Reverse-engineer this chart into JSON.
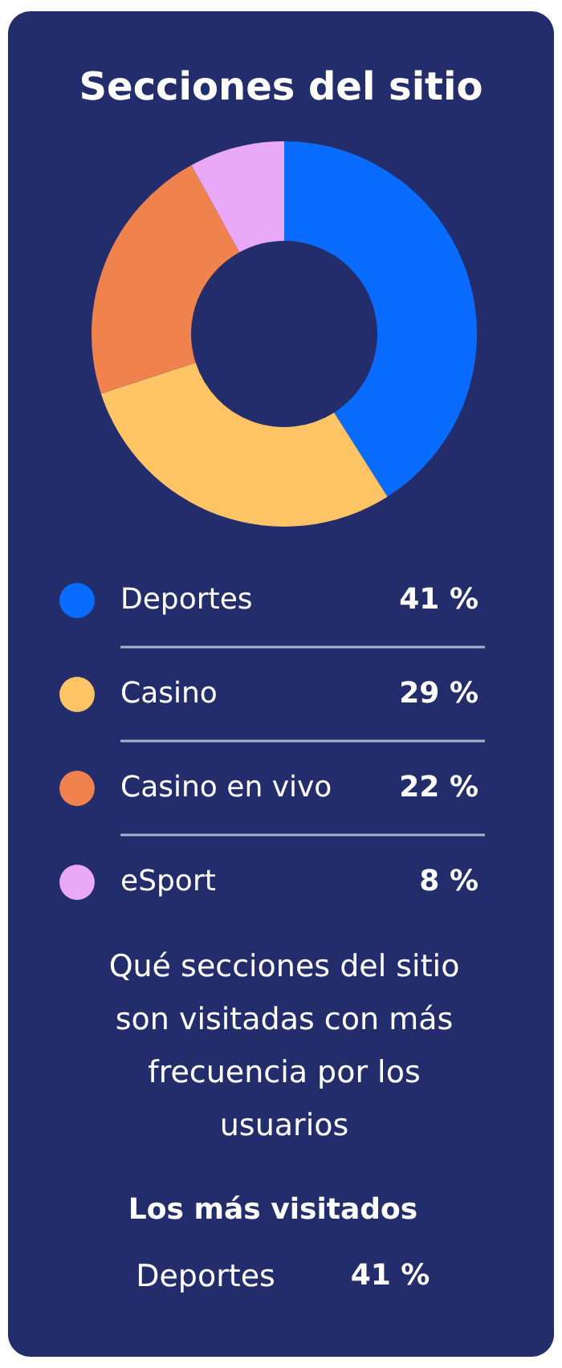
{
  "chart_data": {
    "type": "donut",
    "title": "Secciones del sitio",
    "categories": [
      "Deportes",
      "Casino",
      "Casino en vivo",
      "eSport"
    ],
    "values": [
      41,
      29,
      22,
      8
    ],
    "value_labels": [
      "41 %",
      "29 %",
      "22 %",
      "8 %"
    ],
    "colors": [
      "#0a6cff",
      "#ffc466",
      "#f0834d",
      "#eaa9f7"
    ],
    "legend": "bottom",
    "annotations": [
      "Qué secciones del sitio son visitadas con más frecuencia por los usuarios",
      "Los más visitados",
      "Deportes",
      "41 %"
    ]
  }
}
